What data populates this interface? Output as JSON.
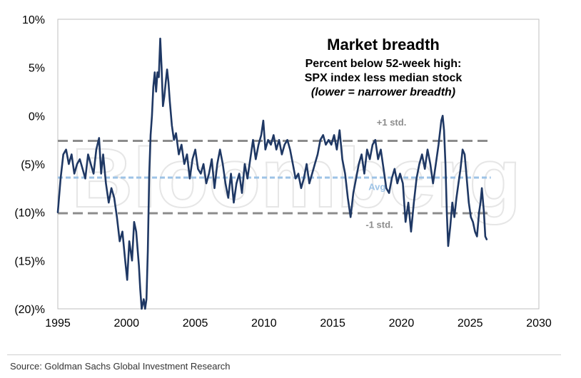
{
  "chart_data": {
    "type": "line",
    "title": "Market breadth",
    "subtitle_lines": [
      "Percent below 52-week high:",
      "SPX index less median stock",
      "(lower = narrower breadth)"
    ],
    "xlabel": "",
    "ylabel": "",
    "xlim": [
      1995,
      2030
    ],
    "ylim": [
      -20,
      10
    ],
    "x_ticks": [
      1995,
      2000,
      2005,
      2010,
      2015,
      2020,
      2025,
      2030
    ],
    "x_tick_labels": [
      "1995",
      "2000",
      "2005",
      "2010",
      "2015",
      "2020",
      "2025",
      "2030"
    ],
    "y_ticks": [
      10,
      5,
      0,
      -5,
      -10,
      -15,
      -20
    ],
    "y_tick_labels": [
      "10%",
      "5%",
      "0%",
      "(5)%",
      "(10)%",
      "(15)%",
      "(20)%"
    ],
    "grid": false,
    "reference_lines": [
      {
        "label": "+1 std.",
        "value": -2.6,
        "color": "#8c8c8c"
      },
      {
        "label": "Avg",
        "value": -6.4,
        "color": "#9dc3e6"
      },
      {
        "label": "-1 std.",
        "value": -10.1,
        "color": "#8c8c8c"
      }
    ],
    "series": [
      {
        "color": "#1f3864",
        "points": [
          [
            1995.0,
            -10.0
          ],
          [
            1995.2,
            -6.5
          ],
          [
            1995.4,
            -4.0
          ],
          [
            1995.6,
            -3.5
          ],
          [
            1995.8,
            -5.0
          ],
          [
            1996.0,
            -4.0
          ],
          [
            1996.2,
            -6.0
          ],
          [
            1996.4,
            -5.0
          ],
          [
            1996.6,
            -4.5
          ],
          [
            1996.8,
            -5.5
          ],
          [
            1997.0,
            -6.5
          ],
          [
            1997.2,
            -4.0
          ],
          [
            1997.4,
            -5.0
          ],
          [
            1997.6,
            -6.0
          ],
          [
            1997.8,
            -3.5
          ],
          [
            1998.0,
            -2.3
          ],
          [
            1998.15,
            -6.0
          ],
          [
            1998.3,
            -4.0
          ],
          [
            1998.5,
            -7.0
          ],
          [
            1998.7,
            -9.0
          ],
          [
            1998.9,
            -7.5
          ],
          [
            1999.1,
            -8.5
          ],
          [
            1999.3,
            -10.5
          ],
          [
            1999.5,
            -13.0
          ],
          [
            1999.7,
            -12.0
          ],
          [
            1999.9,
            -15.0
          ],
          [
            2000.05,
            -17.0
          ],
          [
            2000.2,
            -13.0
          ],
          [
            2000.4,
            -15.0
          ],
          [
            2000.55,
            -11.0
          ],
          [
            2000.7,
            -12.0
          ],
          [
            2000.9,
            -15.5
          ],
          [
            2001.0,
            -18.0
          ],
          [
            2001.1,
            -20.0
          ],
          [
            2001.25,
            -19.0
          ],
          [
            2001.35,
            -20.0
          ],
          [
            2001.45,
            -19.0
          ],
          [
            2001.55,
            -14.0
          ],
          [
            2001.65,
            -6.0
          ],
          [
            2001.75,
            -2.0
          ],
          [
            2001.85,
            0.0
          ],
          [
            2001.95,
            3.0
          ],
          [
            2002.05,
            4.5
          ],
          [
            2002.15,
            2.5
          ],
          [
            2002.25,
            4.5
          ],
          [
            2002.35,
            4.0
          ],
          [
            2002.45,
            8.0
          ],
          [
            2002.55,
            5.0
          ],
          [
            2002.65,
            1.0
          ],
          [
            2002.75,
            2.0
          ],
          [
            2002.85,
            3.5
          ],
          [
            2002.95,
            4.8
          ],
          [
            2003.05,
            3.5
          ],
          [
            2003.15,
            1.5
          ],
          [
            2003.3,
            -1.0
          ],
          [
            2003.45,
            -2.5
          ],
          [
            2003.6,
            -1.8
          ],
          [
            2003.8,
            -4.0
          ],
          [
            2004.0,
            -3.0
          ],
          [
            2004.2,
            -5.0
          ],
          [
            2004.4,
            -4.0
          ],
          [
            2004.6,
            -6.5
          ],
          [
            2004.8,
            -4.5
          ],
          [
            2005.0,
            -3.5
          ],
          [
            2005.2,
            -5.5
          ],
          [
            2005.4,
            -6.0
          ],
          [
            2005.6,
            -5.0
          ],
          [
            2005.8,
            -7.0
          ],
          [
            2006.0,
            -6.0
          ],
          [
            2006.2,
            -4.5
          ],
          [
            2006.4,
            -7.5
          ],
          [
            2006.6,
            -5.0
          ],
          [
            2006.8,
            -3.5
          ],
          [
            2007.0,
            -5.0
          ],
          [
            2007.2,
            -7.0
          ],
          [
            2007.4,
            -8.5
          ],
          [
            2007.6,
            -6.0
          ],
          [
            2007.8,
            -9.0
          ],
          [
            2008.0,
            -7.0
          ],
          [
            2008.2,
            -6.0
          ],
          [
            2008.4,
            -8.0
          ],
          [
            2008.6,
            -5.0
          ],
          [
            2008.8,
            -6.5
          ],
          [
            2009.0,
            -4.5
          ],
          [
            2009.2,
            -2.5
          ],
          [
            2009.4,
            -4.5
          ],
          [
            2009.6,
            -3.0
          ],
          [
            2009.8,
            -2.0
          ],
          [
            2009.95,
            -0.5
          ],
          [
            2010.1,
            -3.5
          ],
          [
            2010.3,
            -2.5
          ],
          [
            2010.5,
            -3.0
          ],
          [
            2010.7,
            -2.0
          ],
          [
            2010.9,
            -3.5
          ],
          [
            2011.1,
            -2.5
          ],
          [
            2011.3,
            -4.0
          ],
          [
            2011.5,
            -3.0
          ],
          [
            2011.7,
            -2.5
          ],
          [
            2011.9,
            -3.5
          ],
          [
            2012.1,
            -5.0
          ],
          [
            2012.3,
            -6.5
          ],
          [
            2012.5,
            -6.0
          ],
          [
            2012.7,
            -7.5
          ],
          [
            2012.9,
            -6.5
          ],
          [
            2013.1,
            -5.0
          ],
          [
            2013.3,
            -7.0
          ],
          [
            2013.5,
            -6.0
          ],
          [
            2013.7,
            -5.0
          ],
          [
            2013.9,
            -4.0
          ],
          [
            2014.1,
            -2.5
          ],
          [
            2014.3,
            -2.0
          ],
          [
            2014.5,
            -3.0
          ],
          [
            2014.7,
            -2.5
          ],
          [
            2014.9,
            -3.0
          ],
          [
            2015.1,
            -2.0
          ],
          [
            2015.3,
            -3.5
          ],
          [
            2015.5,
            -1.5
          ],
          [
            2015.7,
            -4.5
          ],
          [
            2015.9,
            -6.0
          ],
          [
            2016.1,
            -8.5
          ],
          [
            2016.3,
            -10.5
          ],
          [
            2016.5,
            -8.0
          ],
          [
            2016.7,
            -6.5
          ],
          [
            2016.9,
            -5.0
          ],
          [
            2017.1,
            -4.0
          ],
          [
            2017.3,
            -6.0
          ],
          [
            2017.5,
            -3.5
          ],
          [
            2017.7,
            -4.5
          ],
          [
            2017.9,
            -3.0
          ],
          [
            2018.1,
            -2.5
          ],
          [
            2018.3,
            -4.5
          ],
          [
            2018.5,
            -3.5
          ],
          [
            2018.7,
            -5.5
          ],
          [
            2018.9,
            -7.5
          ],
          [
            2019.1,
            -8.0
          ],
          [
            2019.3,
            -6.5
          ],
          [
            2019.5,
            -5.5
          ],
          [
            2019.7,
            -7.0
          ],
          [
            2019.9,
            -6.0
          ],
          [
            2020.1,
            -7.0
          ],
          [
            2020.3,
            -11.0
          ],
          [
            2020.5,
            -9.0
          ],
          [
            2020.7,
            -12.0
          ],
          [
            2020.9,
            -9.0
          ],
          [
            2021.1,
            -6.5
          ],
          [
            2021.3,
            -5.0
          ],
          [
            2021.5,
            -4.0
          ],
          [
            2021.7,
            -5.5
          ],
          [
            2021.9,
            -3.5
          ],
          [
            2022.1,
            -5.0
          ],
          [
            2022.3,
            -7.0
          ],
          [
            2022.5,
            -5.0
          ],
          [
            2022.7,
            -3.0
          ],
          [
            2022.9,
            -0.5
          ],
          [
            2023.0,
            0.0
          ],
          [
            2023.1,
            -1.5
          ],
          [
            2023.2,
            -5.0
          ],
          [
            2023.3,
            -10.0
          ],
          [
            2023.4,
            -13.5
          ],
          [
            2023.55,
            -11.5
          ],
          [
            2023.7,
            -9.0
          ],
          [
            2023.85,
            -10.5
          ],
          [
            2024.0,
            -8.5
          ],
          [
            2024.15,
            -7.0
          ],
          [
            2024.3,
            -5.5
          ],
          [
            2024.45,
            -3.5
          ],
          [
            2024.6,
            -4.0
          ],
          [
            2024.75,
            -6.5
          ],
          [
            2024.9,
            -9.0
          ],
          [
            2025.05,
            -10.5
          ],
          [
            2025.2,
            -11.0
          ],
          [
            2025.35,
            -12.0
          ],
          [
            2025.5,
            -12.5
          ],
          [
            2025.65,
            -10.0
          ],
          [
            2025.75,
            -9.0
          ],
          [
            2025.85,
            -7.5
          ],
          [
            2026.0,
            -10.0
          ],
          [
            2026.1,
            -12.5
          ],
          [
            2026.2,
            -12.8
          ]
        ]
      }
    ]
  },
  "watermark_text": "Bloomberg",
  "source": "Source: Goldman Sachs Global Investment Research"
}
